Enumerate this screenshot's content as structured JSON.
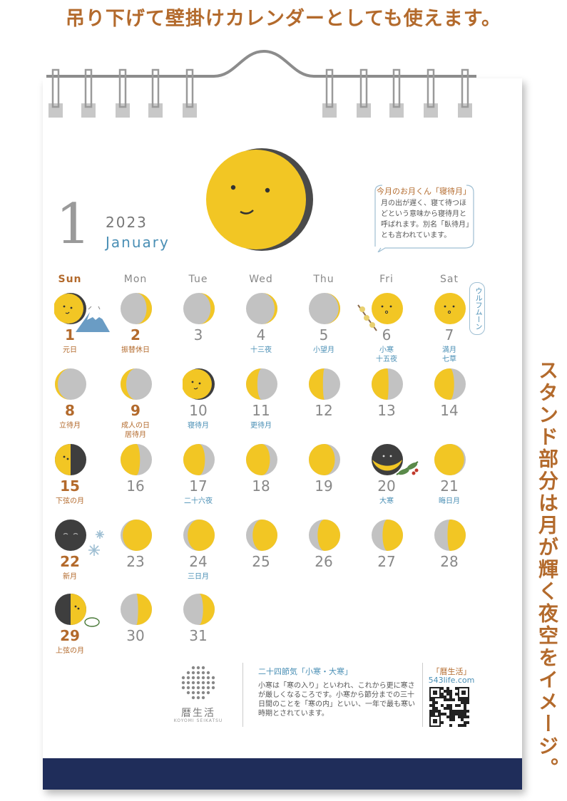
{
  "headline": "吊り下げて壁掛けカレンダーとしても使えます。",
  "side_caption": "スタンド部分は月が輝く夜空をイメージ。",
  "calendar": {
    "month_number": "1",
    "year": "2023",
    "month_en": "January",
    "weekdays": [
      "Sun",
      "Mon",
      "Tue",
      "Wed",
      "Thu",
      "Fri",
      "Sat"
    ]
  },
  "moon_note": {
    "title": "今月のお月くん「寝待月」",
    "body": "月の出が遅く、寝て待つほどという意味から寝待月と呼ばれます。別名「臥待月」とも言われています。"
  },
  "wolf_moon_label": "ウルフムーン",
  "days": [
    {
      "day": "1",
      "notes": [
        "元日"
      ],
      "note_color": "brown",
      "holiday": true
    },
    {
      "day": "2",
      "notes": [
        "振替休日"
      ],
      "note_color": "brown",
      "holiday": true
    },
    {
      "day": "3",
      "notes": [],
      "note_color": "blue",
      "holiday": false
    },
    {
      "day": "4",
      "notes": [
        "十三夜"
      ],
      "note_color": "blue",
      "holiday": false
    },
    {
      "day": "5",
      "notes": [
        "小望月"
      ],
      "note_color": "blue",
      "holiday": false
    },
    {
      "day": "6",
      "notes": [
        "小寒",
        "十五夜"
      ],
      "note_color": "blue",
      "holiday": false
    },
    {
      "day": "7",
      "notes": [
        "満月",
        "七草"
      ],
      "note_color": "blue",
      "holiday": false
    },
    {
      "day": "8",
      "notes": [
        "立待月"
      ],
      "note_color": "brown",
      "holiday": true
    },
    {
      "day": "9",
      "notes": [
        "成人の日",
        "居待月"
      ],
      "note_color": "brown",
      "holiday": true
    },
    {
      "day": "10",
      "notes": [
        "寝待月"
      ],
      "note_color": "blue",
      "holiday": false
    },
    {
      "day": "11",
      "notes": [
        "更待月"
      ],
      "note_color": "blue",
      "holiday": false
    },
    {
      "day": "12",
      "notes": [],
      "note_color": "blue",
      "holiday": false
    },
    {
      "day": "13",
      "notes": [],
      "note_color": "blue",
      "holiday": false
    },
    {
      "day": "14",
      "notes": [],
      "note_color": "blue",
      "holiday": false
    },
    {
      "day": "15",
      "notes": [
        "下弦の月"
      ],
      "note_color": "brown",
      "holiday": true
    },
    {
      "day": "16",
      "notes": [],
      "note_color": "blue",
      "holiday": false
    },
    {
      "day": "17",
      "notes": [
        "二十六夜"
      ],
      "note_color": "blue",
      "holiday": false
    },
    {
      "day": "18",
      "notes": [],
      "note_color": "blue",
      "holiday": false
    },
    {
      "day": "19",
      "notes": [],
      "note_color": "blue",
      "holiday": false
    },
    {
      "day": "20",
      "notes": [
        "大寒"
      ],
      "note_color": "blue",
      "holiday": false
    },
    {
      "day": "21",
      "notes": [
        "晦日月"
      ],
      "note_color": "blue",
      "holiday": false
    },
    {
      "day": "22",
      "notes": [
        "新月"
      ],
      "note_color": "brown",
      "holiday": true
    },
    {
      "day": "23",
      "notes": [],
      "note_color": "blue",
      "holiday": false
    },
    {
      "day": "24",
      "notes": [
        "三日月"
      ],
      "note_color": "blue",
      "holiday": false
    },
    {
      "day": "25",
      "notes": [],
      "note_color": "blue",
      "holiday": false
    },
    {
      "day": "26",
      "notes": [],
      "note_color": "blue",
      "holiday": false
    },
    {
      "day": "27",
      "notes": [],
      "note_color": "blue",
      "holiday": false
    },
    {
      "day": "28",
      "notes": [],
      "note_color": "blue",
      "holiday": false
    },
    {
      "day": "29",
      "notes": [
        "上弦の月"
      ],
      "note_color": "brown",
      "holiday": true
    },
    {
      "day": "30",
      "notes": [],
      "note_color": "blue",
      "holiday": false
    },
    {
      "day": "31",
      "notes": [],
      "note_color": "blue",
      "holiday": false
    }
  ],
  "footer": {
    "logo_name": "暦生活",
    "logo_sub": "KOYOMI SEIKATSU",
    "sekki_title": "二十四節気「小寒・大寒」",
    "sekki_body": "小寒は「寒の入り」といわれ、これから更に寒さが厳しくなるころです。小寒から節分までの三十日間のことを「寒の内」といい、一年で最も寒い時期とされています。",
    "brand_title": "「暦生活」",
    "brand_url": "543life.com"
  },
  "colors": {
    "moon_yellow": "#f2c624",
    "moon_shadow_grey": "#c2c2c2",
    "new_moon_dark": "#3e3e3e",
    "accent_brown": "#b36a2c",
    "accent_blue": "#4a8fb5",
    "navy": "#1f2d5a"
  }
}
